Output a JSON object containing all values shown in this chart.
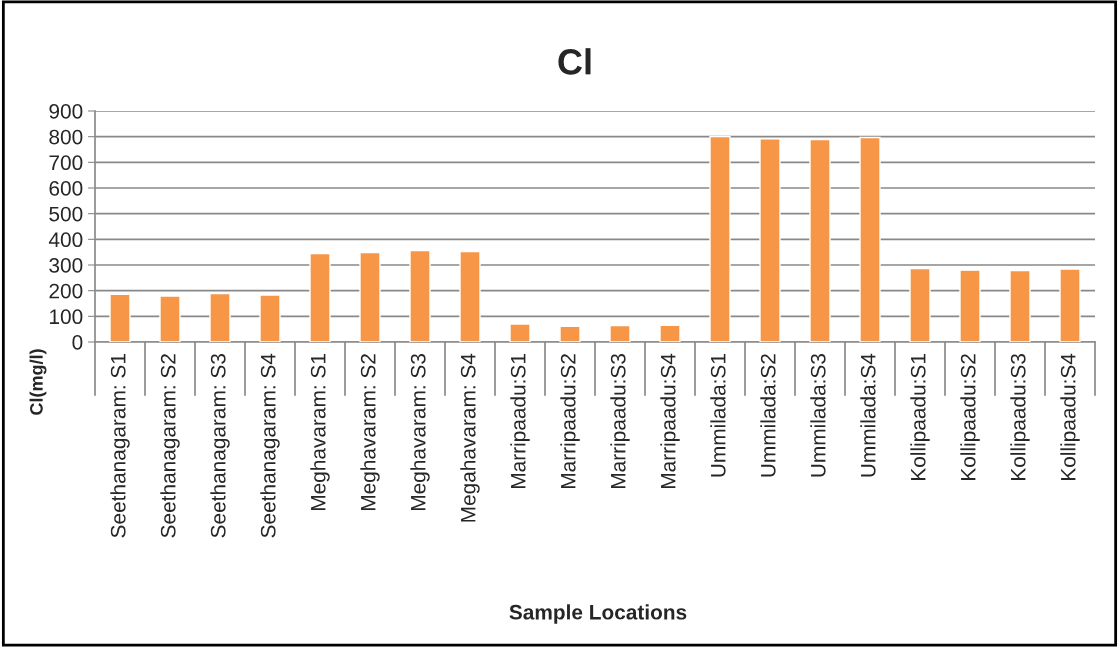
{
  "chart_data": {
    "type": "bar",
    "title": "Cl",
    "xlabel": "Sample Locations",
    "ylabel": "Cl(mg/l)",
    "categories": [
      "Seethanagaram: S1",
      "Seethanagaram: S2",
      "Seethanagaram: S3",
      "Seethanagaram: S4",
      "Meghavaram: S1",
      "Meghavaram: S2",
      "Meghavaram: S3",
      "Megahavaram: S4",
      "Marripaadu:S1",
      "Marripaadu:S2",
      "Marripaadu:S3",
      "Marripaadu:S4",
      "Ummilada:S1",
      "Ummilada:S2",
      "Ummilada:S3",
      "Ummilada:S4",
      "Kollipaadu:S1",
      "Kollipaadu:S2",
      "Kollipaadu:S3",
      "Kollipaadu:S4"
    ],
    "values": [
      186,
      179,
      189,
      183,
      345,
      348,
      356,
      352,
      70,
      61,
      64,
      65,
      800,
      792,
      789,
      797,
      286,
      280,
      278,
      284
    ],
    "color": "#f79646",
    "ylim": [
      0,
      900
    ],
    "yticks": [
      0,
      100,
      200,
      300,
      400,
      500,
      600,
      700,
      800,
      900
    ],
    "grid": "y",
    "legend": false
  }
}
